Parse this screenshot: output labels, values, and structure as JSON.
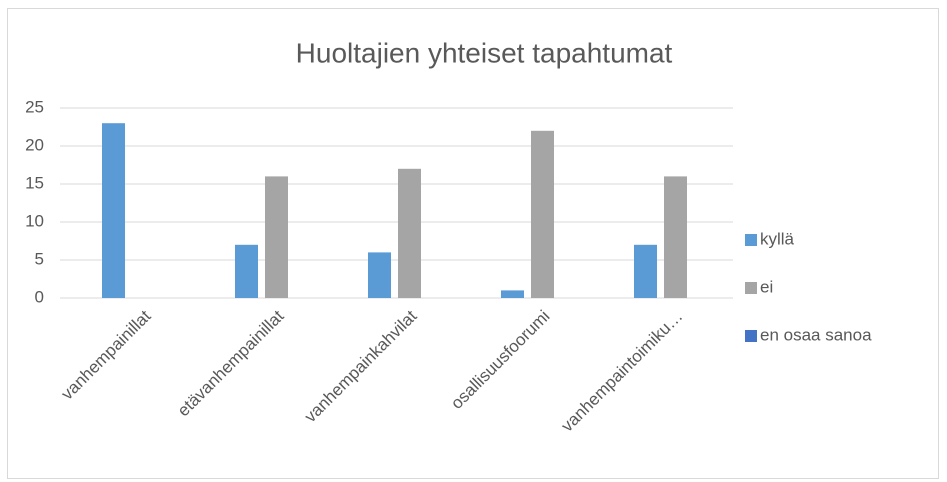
{
  "chart_data": {
    "type": "bar",
    "title": "Huoltajien yhteiset tapahtumat",
    "categories": [
      "vanhempainillat",
      "etävanhempainillat",
      "vanhempainkahvilat",
      "osallisuusfoorumi",
      "vanhempaintoimiku…"
    ],
    "series": [
      {
        "name": "kyllä",
        "color": "#5b9bd5",
        "values": [
          23,
          7,
          6,
          1,
          7
        ]
      },
      {
        "name": "ei",
        "color": "#a5a5a5",
        "values": [
          0,
          16,
          17,
          22,
          16
        ]
      },
      {
        "name": "en osaa sanoa",
        "color": "#4472c4",
        "values": [
          0,
          0,
          0,
          0,
          0
        ]
      }
    ],
    "ylim": [
      0,
      25
    ],
    "yticks": [
      0,
      5,
      10,
      15,
      20,
      25
    ],
    "grid": true,
    "legend": "right"
  }
}
